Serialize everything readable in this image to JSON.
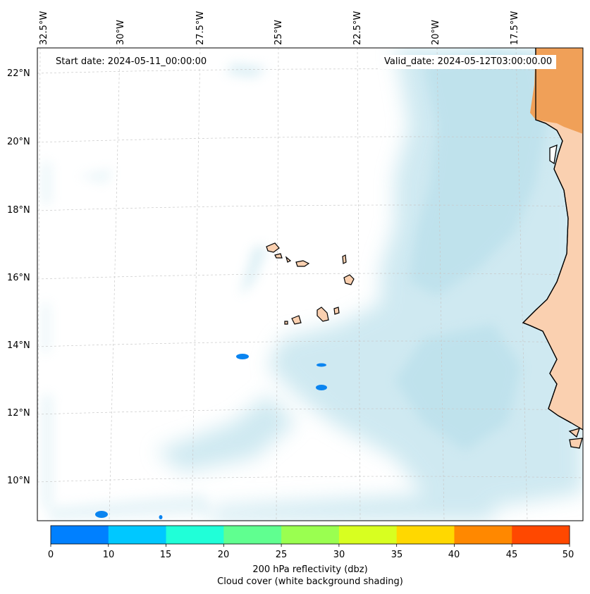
{
  "annotations": {
    "start_date": "Start date: 2024-05-11_00:00:00",
    "valid_date": "Valid_date: 2024-05-12T03:00:00.00"
  },
  "longitude_labels": [
    "32.5°W",
    "30°W",
    "27.5°W",
    "25°W",
    "22.5°W",
    "20°W",
    "17.5°W"
  ],
  "latitude_labels": [
    "22°N",
    "20°N",
    "18°N",
    "16°N",
    "14°N",
    "12°N",
    "10°N"
  ],
  "colorbar": {
    "ticks": [
      "0",
      "10",
      "15",
      "20",
      "25",
      "30",
      "35",
      "40",
      "45",
      "50"
    ],
    "colors": [
      "#0080ff",
      "#00c8ff",
      "#20ffd8",
      "#60ff90",
      "#9aff50",
      "#d8ff20",
      "#ffd800",
      "#ff8800",
      "#ff4800"
    ],
    "title_line1": "200 hPa reflectivity (dbz)",
    "title_line2": "Cloud cover (white background shading)"
  },
  "map_colors": {
    "cloud": "#a8d8e6",
    "land_hot": "#f0a058",
    "land_warm": "#fad0b0",
    "reflectivity_low": "#0a84f0"
  }
}
